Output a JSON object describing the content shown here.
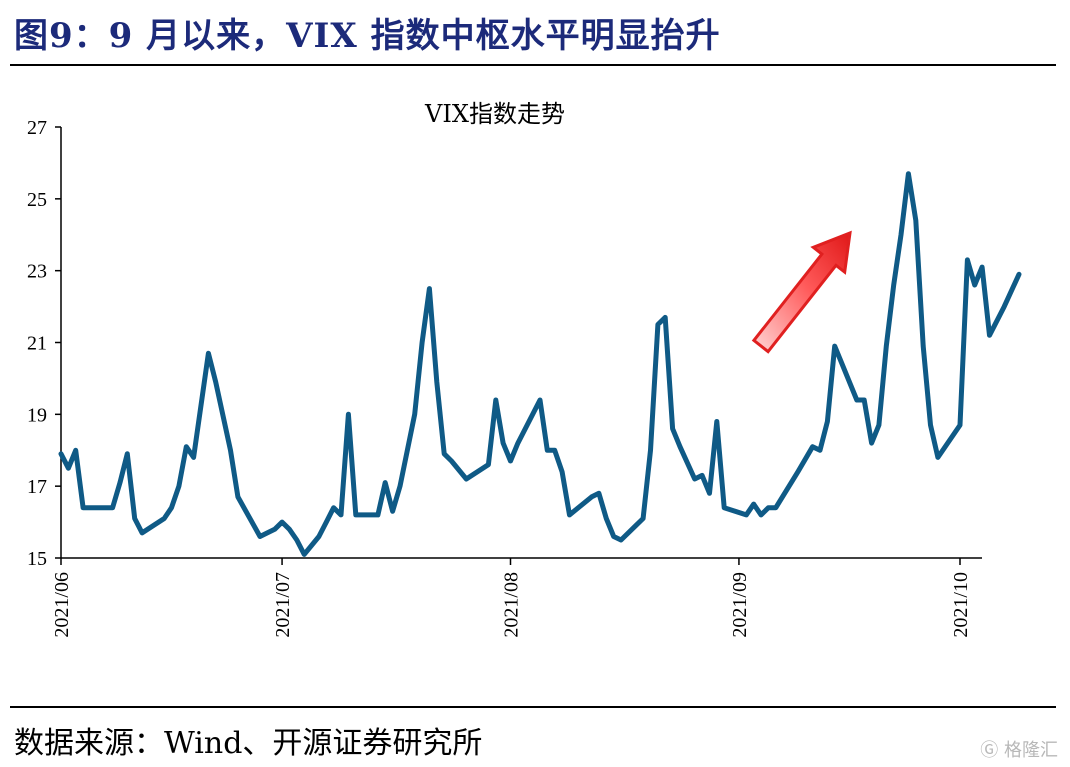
{
  "figure": {
    "title": "图9：9 月以来，VIX 指数中枢水平明显抬升",
    "source": "数据来源：Wind、开源证券研究所",
    "watermark": "格隆汇"
  },
  "colors": {
    "line": "#0f5a86",
    "title": "#1c2a7a",
    "arrow": "#e02020"
  },
  "chart_data": {
    "type": "line",
    "title": "VIX指数走势",
    "xlabel": "",
    "ylabel": "",
    "ylim": [
      15,
      27
    ],
    "yticks": [
      15,
      17,
      19,
      21,
      23,
      25,
      27
    ],
    "x_range": [
      "2021-06-01",
      "2021-10-05"
    ],
    "xticks": [
      {
        "date": "2021-06-01",
        "label": "2021/06"
      },
      {
        "date": "2021-07-01",
        "label": "2021/07"
      },
      {
        "date": "2021-08-01",
        "label": "2021/08"
      },
      {
        "date": "2021-09-01",
        "label": "2021/09"
      },
      {
        "date": "2021-10-01",
        "label": "2021/10"
      }
    ],
    "grid": false,
    "legend": "none",
    "annotation": "red upward arrow (mid-September)",
    "series": [
      {
        "points": [
          [
            "2021-06-01",
            17.9
          ],
          [
            "2021-06-02",
            17.5
          ],
          [
            "2021-06-03",
            18.0
          ],
          [
            "2021-06-04",
            16.4
          ],
          [
            "2021-06-07",
            16.4
          ],
          [
            "2021-06-08",
            16.4
          ],
          [
            "2021-06-09",
            17.1
          ],
          [
            "2021-06-10",
            17.9
          ],
          [
            "2021-06-11",
            16.1
          ],
          [
            "2021-06-12",
            15.7
          ],
          [
            "2021-06-15",
            16.1
          ],
          [
            "2021-06-16",
            16.4
          ],
          [
            "2021-06-17",
            17.0
          ],
          [
            "2021-06-18",
            18.1
          ],
          [
            "2021-06-19",
            17.8
          ],
          [
            "2021-06-21",
            20.7
          ],
          [
            "2021-06-22",
            19.9
          ],
          [
            "2021-06-24",
            18.0
          ],
          [
            "2021-06-25",
            16.7
          ],
          [
            "2021-06-28",
            15.6
          ],
          [
            "2021-06-29",
            15.7
          ],
          [
            "2021-06-30",
            15.8
          ],
          [
            "2021-07-01",
            16.0
          ],
          [
            "2021-07-02",
            15.8
          ],
          [
            "2021-07-03",
            15.5
          ],
          [
            "2021-07-04",
            15.1
          ],
          [
            "2021-07-06",
            15.6
          ],
          [
            "2021-07-07",
            16.0
          ],
          [
            "2021-07-08",
            16.4
          ],
          [
            "2021-07-09",
            16.2
          ],
          [
            "2021-07-10",
            19.0
          ],
          [
            "2021-07-11",
            16.2
          ],
          [
            "2021-07-14",
            16.2
          ],
          [
            "2021-07-15",
            17.1
          ],
          [
            "2021-07-16",
            16.3
          ],
          [
            "2021-07-17",
            17.0
          ],
          [
            "2021-07-19",
            19.0
          ],
          [
            "2021-07-20",
            21.0
          ],
          [
            "2021-07-21",
            22.5
          ],
          [
            "2021-07-22",
            19.9
          ],
          [
            "2021-07-23",
            17.9
          ],
          [
            "2021-07-24",
            17.7
          ],
          [
            "2021-07-26",
            17.2
          ],
          [
            "2021-07-29",
            17.6
          ],
          [
            "2021-07-30",
            19.4
          ],
          [
            "2021-07-31",
            18.2
          ],
          [
            "2021-08-01",
            17.7
          ],
          [
            "2021-08-02",
            18.2
          ],
          [
            "2021-08-05",
            19.4
          ],
          [
            "2021-08-06",
            18.0
          ],
          [
            "2021-08-07",
            18.0
          ],
          [
            "2021-08-08",
            17.4
          ],
          [
            "2021-08-09",
            16.2
          ],
          [
            "2021-08-12",
            16.7
          ],
          [
            "2021-08-13",
            16.8
          ],
          [
            "2021-08-14",
            16.1
          ],
          [
            "2021-08-15",
            15.6
          ],
          [
            "2021-08-16",
            15.5
          ],
          [
            "2021-08-19",
            16.1
          ],
          [
            "2021-08-20",
            18.0
          ],
          [
            "2021-08-21",
            21.5
          ],
          [
            "2021-08-22",
            21.7
          ],
          [
            "2021-08-23",
            18.6
          ],
          [
            "2021-08-24",
            18.1
          ],
          [
            "2021-08-26",
            17.2
          ],
          [
            "2021-08-27",
            17.3
          ],
          [
            "2021-08-28",
            16.8
          ],
          [
            "2021-08-29",
            18.8
          ],
          [
            "2021-08-30",
            16.4
          ],
          [
            "2021-09-02",
            16.2
          ],
          [
            "2021-09-03",
            16.5
          ],
          [
            "2021-09-04",
            16.2
          ],
          [
            "2021-09-05",
            16.4
          ],
          [
            "2021-09-06",
            16.4
          ],
          [
            "2021-09-09",
            17.4
          ],
          [
            "2021-09-11",
            18.1
          ],
          [
            "2021-09-12",
            18.0
          ],
          [
            "2021-09-13",
            18.8
          ],
          [
            "2021-09-14",
            20.9
          ],
          [
            "2021-09-15",
            20.4
          ],
          [
            "2021-09-17",
            19.4
          ],
          [
            "2021-09-18",
            19.4
          ],
          [
            "2021-09-19",
            18.2
          ],
          [
            "2021-09-20",
            18.7
          ],
          [
            "2021-09-21",
            20.9
          ],
          [
            "2021-09-22",
            22.6
          ],
          [
            "2021-09-23",
            24.0
          ],
          [
            "2021-09-24",
            25.7
          ],
          [
            "2021-09-25",
            24.4
          ],
          [
            "2021-09-26",
            20.9
          ],
          [
            "2021-09-27",
            18.7
          ],
          [
            "2021-09-28",
            17.8
          ],
          [
            "2021-10-01",
            18.7
          ],
          [
            "2021-10-02",
            23.3
          ],
          [
            "2021-10-03",
            22.6
          ],
          [
            "2021-10-04",
            23.1
          ],
          [
            "2021-10-05",
            21.2
          ],
          [
            "2021-10-07",
            22.0
          ],
          [
            "2021-10-09",
            22.9
          ]
        ]
      }
    ]
  }
}
